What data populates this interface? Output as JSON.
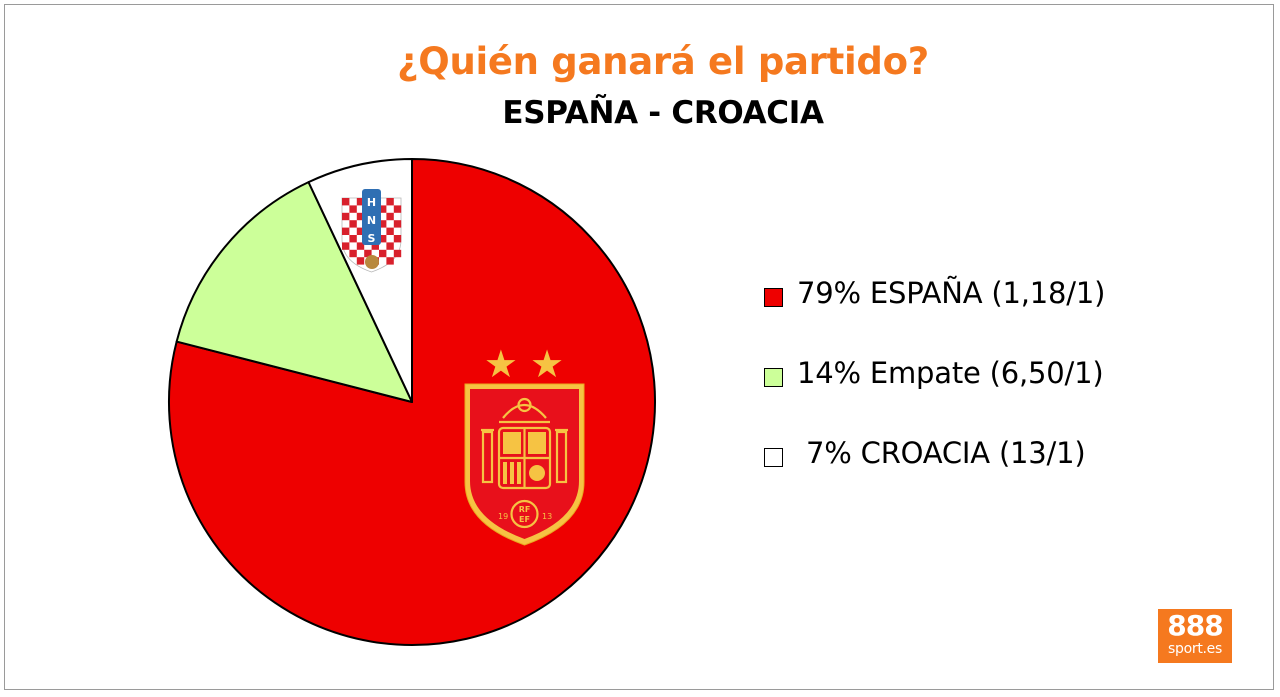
{
  "chart_data": {
    "type": "pie",
    "title": "¿Quién ganará el partido?",
    "subtitle": "ESPAÑA - CROACIA",
    "slices": [
      {
        "label": "ESPAÑA (1,18/1)",
        "value": 79,
        "color": "#ee0000"
      },
      {
        "label": "Empate (6,50/1)",
        "value": 14,
        "color": "#ccff99"
      },
      {
        "label": "CROACIA (13/1)",
        "value": 7,
        "color": "#ffffff"
      }
    ],
    "legend": {
      "position": "right",
      "items": [
        "79% ESPAÑA (1,18/1)",
        "14% Empate (6,50/1)",
        " 7% CROACIA (13/1)"
      ]
    }
  },
  "colors": {
    "title": "#f5791f",
    "brand": "#f5791f",
    "crest_gold": "#f6c343",
    "crest_red": "#e8101b"
  },
  "icons": {
    "spain_crest": "rfef-crest-icon",
    "croatia_crest": "hns-crest-icon"
  },
  "croatia_crest_text": "HNS",
  "spain_crest_text": {
    "stars": "★ ★",
    "year_left": "19",
    "year_right": "13",
    "initials_top": "RF",
    "initials_bottom": "EF"
  },
  "brand": {
    "number": "888",
    "sub": "sport.es"
  }
}
